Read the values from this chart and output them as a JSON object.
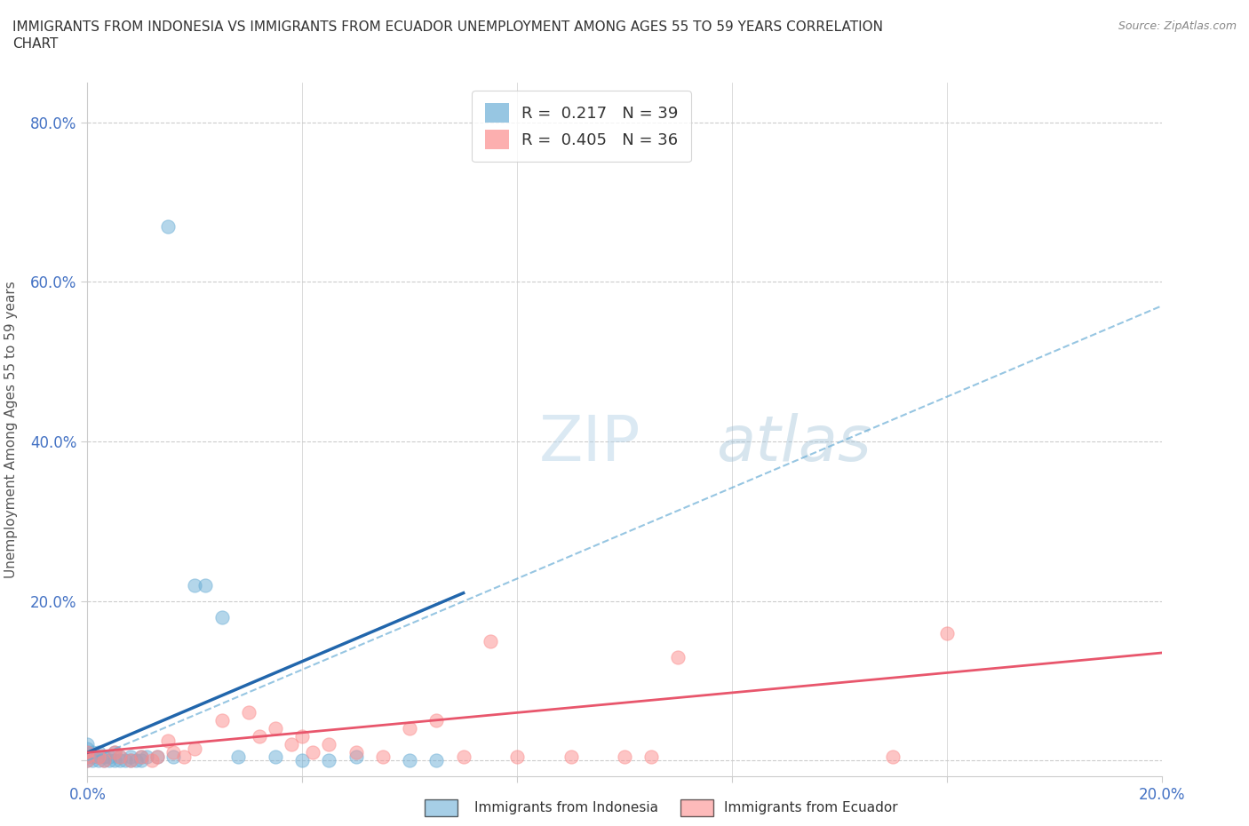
{
  "title_line1": "IMMIGRANTS FROM INDONESIA VS IMMIGRANTS FROM ECUADOR UNEMPLOYMENT AMONG AGES 55 TO 59 YEARS CORRELATION",
  "title_line2": "CHART",
  "source": "Source: ZipAtlas.com",
  "ylabel": "Unemployment Among Ages 55 to 59 years",
  "xlim": [
    0.0,
    0.2
  ],
  "ylim": [
    -0.02,
    0.85
  ],
  "x_ticks": [
    0.0,
    0.04,
    0.08,
    0.12,
    0.16,
    0.2
  ],
  "y_ticks": [
    0.0,
    0.2,
    0.4,
    0.6,
    0.8
  ],
  "x_tick_labels": [
    "0.0%",
    "",
    "",
    "",
    "",
    "20.0%"
  ],
  "y_tick_labels": [
    "",
    "20.0%",
    "40.0%",
    "60.0%",
    "80.0%"
  ],
  "indonesia_color": "#6baed6",
  "ecuador_color": "#fc8d8d",
  "indonesia_R": 0.217,
  "indonesia_N": 39,
  "ecuador_R": 0.405,
  "ecuador_N": 36,
  "watermark_zip": "ZIP",
  "watermark_atlas": "atlas",
  "background_color": "#ffffff",
  "grid_color": "#cccccc",
  "indonesia_x": [
    0.0,
    0.0,
    0.0,
    0.0,
    0.0,
    0.001,
    0.001,
    0.001,
    0.002,
    0.002,
    0.002,
    0.003,
    0.003,
    0.004,
    0.004,
    0.005,
    0.005,
    0.006,
    0.006,
    0.007,
    0.008,
    0.008,
    0.009,
    0.01,
    0.01,
    0.011,
    0.013,
    0.015,
    0.016,
    0.02,
    0.022,
    0.025,
    0.028,
    0.035,
    0.04,
    0.045,
    0.05,
    0.06,
    0.065
  ],
  "indonesia_y": [
    0.0,
    0.005,
    0.01,
    0.015,
    0.02,
    0.0,
    0.005,
    0.01,
    0.0,
    0.005,
    0.01,
    0.0,
    0.005,
    0.0,
    0.005,
    0.0,
    0.01,
    0.0,
    0.005,
    0.0,
    0.0,
    0.005,
    0.0,
    0.0,
    0.005,
    0.005,
    0.005,
    0.67,
    0.005,
    0.22,
    0.22,
    0.18,
    0.005,
    0.005,
    0.0,
    0.0,
    0.005,
    0.0,
    0.0
  ],
  "ecuador_x": [
    0.0,
    0.0,
    0.0,
    0.002,
    0.003,
    0.005,
    0.006,
    0.008,
    0.01,
    0.012,
    0.013,
    0.015,
    0.016,
    0.018,
    0.02,
    0.025,
    0.03,
    0.032,
    0.035,
    0.038,
    0.04,
    0.042,
    0.045,
    0.05,
    0.055,
    0.06,
    0.065,
    0.07,
    0.075,
    0.08,
    0.09,
    0.1,
    0.105,
    0.11,
    0.15,
    0.16
  ],
  "ecuador_y": [
    0.005,
    0.0,
    0.01,
    0.005,
    0.0,
    0.01,
    0.005,
    0.0,
    0.005,
    0.0,
    0.005,
    0.025,
    0.01,
    0.005,
    0.015,
    0.05,
    0.06,
    0.03,
    0.04,
    0.02,
    0.03,
    0.01,
    0.02,
    0.01,
    0.005,
    0.04,
    0.05,
    0.005,
    0.15,
    0.005,
    0.005,
    0.005,
    0.005,
    0.13,
    0.005,
    0.16
  ],
  "indonesia_line_x": [
    0.0,
    0.07
  ],
  "indonesia_line_y": [
    0.01,
    0.21
  ],
  "ecuador_line_x": [
    0.0,
    0.2
  ],
  "ecuador_line_y": [
    0.01,
    0.135
  ],
  "dashed_line_x": [
    0.0,
    0.2
  ],
  "dashed_line_y": [
    0.0,
    0.57
  ]
}
